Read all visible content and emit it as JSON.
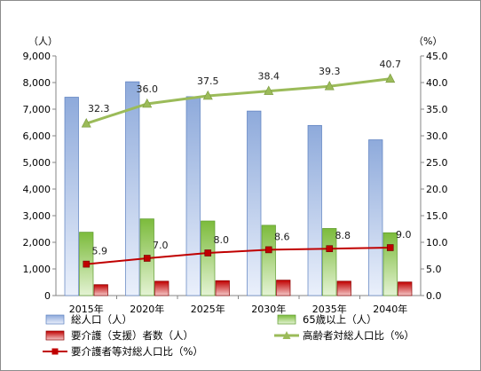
{
  "chart_data": {
    "type": "bar",
    "categories": [
      "2015年",
      "2020年",
      "2025年",
      "2030年",
      "2035年",
      "2040年"
    ],
    "left_axis": {
      "unit": "（人）",
      "ylim": [
        0,
        9000
      ],
      "ticks": [
        "0",
        "1,000",
        "2,000",
        "3,000",
        "4,000",
        "5,000",
        "6,000",
        "7,000",
        "8,000",
        "9,000"
      ]
    },
    "right_axis": {
      "unit": "（%）",
      "ylim": [
        0,
        45
      ],
      "ticks": [
        "0.0",
        "5.0",
        "10.0",
        "15.0",
        "20.0",
        "25.0",
        "30.0",
        "35.0",
        "40.0",
        "45.0"
      ]
    },
    "series": [
      {
        "name": "総人口（人）",
        "kind": "bar",
        "axis": "left",
        "color": "#8eaadb",
        "values": [
          7450,
          8030,
          7470,
          6930,
          6390,
          5850
        ]
      },
      {
        "name": "65歳以上（人）",
        "kind": "bar",
        "axis": "left",
        "color": "#92d050",
        "values": [
          2380,
          2880,
          2800,
          2640,
          2520,
          2360
        ]
      },
      {
        "name": "要介護（支援）者数（人）",
        "kind": "bar",
        "axis": "left",
        "color": "#c00000",
        "values": [
          410,
          540,
          560,
          580,
          540,
          510
        ]
      },
      {
        "name": "高齢者対総人口比（%）",
        "kind": "line",
        "axis": "right",
        "color": "#9bbb59",
        "marker": "triangle",
        "values": [
          32.3,
          36.0,
          37.5,
          38.4,
          39.3,
          40.7
        ],
        "labels": [
          "32.3",
          "36.0",
          "37.5",
          "38.4",
          "39.3",
          "40.7"
        ]
      },
      {
        "name": "要介護者等対総人口比（%）",
        "kind": "line",
        "axis": "right",
        "color": "#c00000",
        "marker": "square",
        "values": [
          5.9,
          7.0,
          8.0,
          8.6,
          8.8,
          9.0
        ],
        "labels": [
          "5.9",
          "7.0",
          "8.0",
          "8.6",
          "8.8",
          "9.0"
        ]
      }
    ],
    "grid": false,
    "legend_position": "bottom"
  }
}
